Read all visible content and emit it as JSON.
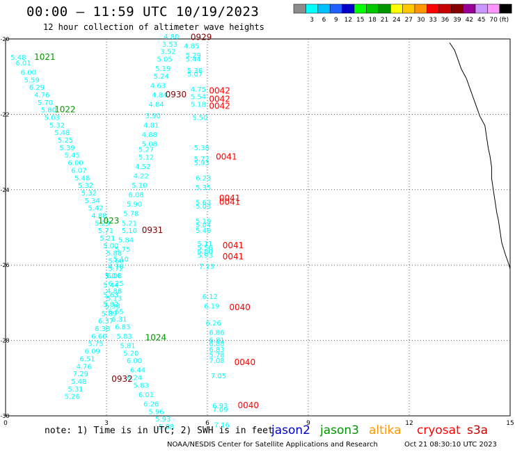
{
  "title": "00:00 – 11:59 UTC 10/19/2023",
  "subtitle": "12 hour collection of altimeter wave heights",
  "colorbar": {
    "unit": "(ft)",
    "bins": [
      {
        "label": "",
        "color": "#8c8c8c"
      },
      {
        "label": "3",
        "color": "#00ffff"
      },
      {
        "label": "6",
        "color": "#00bfff"
      },
      {
        "label": "9",
        "color": "#2060ff"
      },
      {
        "label": "12",
        "color": "#0000c8"
      },
      {
        "label": "15",
        "color": "#00ff00"
      },
      {
        "label": "18",
        "color": "#00c800"
      },
      {
        "label": "21",
        "color": "#009600"
      },
      {
        "label": "24",
        "color": "#ffff00"
      },
      {
        "label": "27",
        "color": "#ffc800"
      },
      {
        "label": "30",
        "color": "#ff9600"
      },
      {
        "label": "33",
        "color": "#ff0000"
      },
      {
        "label": "36",
        "color": "#c80000"
      },
      {
        "label": "39",
        "color": "#820000"
      },
      {
        "label": "42",
        "color": "#960096"
      },
      {
        "label": "45",
        "color": "#c896ff"
      },
      {
        "label": "70",
        "color": "#ff96ff"
      },
      {
        "label": "",
        "color": "#000000"
      }
    ]
  },
  "axes": {
    "x_ticks": [
      "0",
      "3",
      "6",
      "9",
      "12",
      "15"
    ],
    "y_ticks": [
      "-20",
      "-22",
      "-24",
      "-26",
      "-28",
      "-30"
    ],
    "xlim": [
      0,
      15
    ],
    "ylim": [
      -30,
      -20
    ]
  },
  "colors": {
    "jason2": "#0000c8",
    "jason3": "#009600",
    "altika": "#ff9600",
    "cryosat": "#ff0000",
    "s3a": "#c80000",
    "measurement": "#00ffff",
    "pass_dark": "#820000"
  },
  "coastline": [
    [
      13.2,
      -20.1
    ],
    [
      13.35,
      -20.3
    ],
    [
      13.45,
      -20.55
    ],
    [
      13.55,
      -20.8
    ],
    [
      13.7,
      -21.05
    ],
    [
      13.8,
      -21.3
    ],
    [
      13.9,
      -21.55
    ],
    [
      14.0,
      -21.8
    ],
    [
      14.1,
      -22.05
    ],
    [
      14.25,
      -22.3
    ],
    [
      14.3,
      -22.6
    ],
    [
      14.35,
      -22.9
    ],
    [
      14.4,
      -23.1
    ],
    [
      14.45,
      -23.4
    ],
    [
      14.45,
      -23.7
    ],
    [
      14.5,
      -24.0
    ],
    [
      14.55,
      -24.3
    ],
    [
      14.6,
      -24.6
    ],
    [
      14.65,
      -24.8
    ],
    [
      14.7,
      -25.1
    ],
    [
      14.75,
      -25.4
    ],
    [
      14.85,
      -25.7
    ],
    [
      14.95,
      -25.95
    ],
    [
      15.0,
      -26.1
    ]
  ],
  "passes": [
    {
      "label": "0929",
      "x": 5.5,
      "y": -20.03,
      "color": "#820000"
    },
    {
      "label": "1021",
      "x": 0.85,
      "y": -20.55,
      "color": "#009600"
    },
    {
      "label": "0930",
      "x": 4.75,
      "y": -21.55,
      "color": "#820000"
    },
    {
      "label": "0042",
      "x": 6.05,
      "y": -21.45,
      "color": "#ff0000"
    },
    {
      "label": "0042",
      "x": 6.05,
      "y": -21.67,
      "color": "#ff0000"
    },
    {
      "label": "0042",
      "x": 6.05,
      "y": -21.85,
      "color": "#ff0000"
    },
    {
      "label": "1022",
      "x": 1.45,
      "y": -21.95,
      "color": "#009600"
    },
    {
      "label": "0041",
      "x": 6.25,
      "y": -23.2,
      "color": "#ff0000"
    },
    {
      "label": "0041",
      "x": 6.35,
      "y": -24.3,
      "color": "#ff0000"
    },
    {
      "label": "0041",
      "x": 6.35,
      "y": -24.4,
      "color": "#ff0000"
    },
    {
      "label": "1023",
      "x": 2.75,
      "y": -24.9,
      "color": "#009600"
    },
    {
      "label": "0931",
      "x": 4.05,
      "y": -25.15,
      "color": "#820000"
    },
    {
      "label": "0041",
      "x": 6.45,
      "y": -25.55,
      "color": "#ff0000"
    },
    {
      "label": "0041",
      "x": 6.45,
      "y": -25.85,
      "color": "#ff0000"
    },
    {
      "label": "0040",
      "x": 6.65,
      "y": -27.2,
      "color": "#ff0000"
    },
    {
      "label": "1024",
      "x": 4.15,
      "y": -28.0,
      "color": "#009600"
    },
    {
      "label": "0040",
      "x": 6.8,
      "y": -28.65,
      "color": "#ff0000"
    },
    {
      "label": "0932",
      "x": 3.15,
      "y": -29.1,
      "color": "#820000"
    },
    {
      "label": "0040",
      "x": 6.9,
      "y": -29.8,
      "color": "#ff0000"
    }
  ],
  "measurements": [
    {
      "v": "4.80",
      "x": 4.7,
      "y": -20.0
    },
    {
      "v": "3.53",
      "x": 4.65,
      "y": -20.2
    },
    {
      "v": "4.85",
      "x": 5.3,
      "y": -20.25
    },
    {
      "v": "3.52",
      "x": 4.6,
      "y": -20.4
    },
    {
      "v": "5.29",
      "x": 5.35,
      "y": -20.5
    },
    {
      "v": "5.44",
      "x": 5.35,
      "y": -20.6
    },
    {
      "v": "5.05",
      "x": 4.5,
      "y": -20.6
    },
    {
      "v": "5.19",
      "x": 4.45,
      "y": -20.85
    },
    {
      "v": "5.38",
      "x": 5.4,
      "y": -20.9
    },
    {
      "v": "5.07",
      "x": 5.4,
      "y": -21.0
    },
    {
      "v": "5.24",
      "x": 4.4,
      "y": -21.05
    },
    {
      "v": "4.63",
      "x": 4.3,
      "y": -21.3
    },
    {
      "v": "4.75",
      "x": 5.5,
      "y": -21.4
    },
    {
      "v": "4.84",
      "x": 4.35,
      "y": -21.55
    },
    {
      "v": "5.54",
      "x": 5.5,
      "y": -21.6
    },
    {
      "v": "5.18",
      "x": 5.5,
      "y": -21.8
    },
    {
      "v": "4.84",
      "x": 4.25,
      "y": -21.8
    },
    {
      "v": "3.90",
      "x": 4.15,
      "y": -22.1
    },
    {
      "v": "5.50",
      "x": 5.55,
      "y": -22.15
    },
    {
      "v": "4.81",
      "x": 4.1,
      "y": -22.35
    },
    {
      "v": "4.88",
      "x": 4.05,
      "y": -22.6
    },
    {
      "v": "5.08",
      "x": 4.05,
      "y": -22.85
    },
    {
      "v": "5.38",
      "x": 5.6,
      "y": -22.95
    },
    {
      "v": "5.27",
      "x": 3.95,
      "y": -23.0
    },
    {
      "v": "5.12",
      "x": 3.95,
      "y": -23.2
    },
    {
      "v": "5.72",
      "x": 5.6,
      "y": -23.25
    },
    {
      "v": "5.93",
      "x": 5.6,
      "y": -23.35
    },
    {
      "v": "4.52",
      "x": 3.85,
      "y": -23.45
    },
    {
      "v": "4.22",
      "x": 3.8,
      "y": -23.7
    },
    {
      "v": "6.23",
      "x": 5.65,
      "y": -23.75
    },
    {
      "v": "5.10",
      "x": 3.75,
      "y": -23.95
    },
    {
      "v": "5.35",
      "x": 5.65,
      "y": -24.0
    },
    {
      "v": "6.08",
      "x": 3.65,
      "y": -24.2
    },
    {
      "v": "5.63",
      "x": 5.65,
      "y": -24.4
    },
    {
      "v": "5.03",
      "x": 5.65,
      "y": -24.5
    },
    {
      "v": "5.90",
      "x": 3.6,
      "y": -24.45
    },
    {
      "v": "5.78",
      "x": 3.5,
      "y": -24.7
    },
    {
      "v": "5.19",
      "x": 5.65,
      "y": -24.9
    },
    {
      "v": "5.21",
      "x": 3.45,
      "y": -24.95
    },
    {
      "v": "5.04",
      "x": 5.65,
      "y": -25.0
    },
    {
      "v": "5.49",
      "x": 5.65,
      "y": -25.15
    },
    {
      "v": "5.10",
      "x": 3.45,
      "y": -25.15
    },
    {
      "v": "5.84",
      "x": 3.35,
      "y": -25.4
    },
    {
      "v": "5.11",
      "x": 5.7,
      "y": -25.5
    },
    {
      "v": "5.56",
      "x": 5.7,
      "y": -25.6
    },
    {
      "v": "5.75",
      "x": 3.25,
      "y": -25.65
    },
    {
      "v": "6.80",
      "x": 5.7,
      "y": -25.7
    },
    {
      "v": "5.93",
      "x": 5.7,
      "y": -25.8
    },
    {
      "v": "5.10",
      "x": 3.2,
      "y": -25.9
    },
    {
      "v": "7.13",
      "x": 5.75,
      "y": -26.1
    },
    {
      "v": "4.78",
      "x": 3.05,
      "y": -26.1
    },
    {
      "v": "5.04",
      "x": 2.95,
      "y": -26.35
    },
    {
      "v": "5.44",
      "x": 2.9,
      "y": -26.6
    },
    {
      "v": "6.12",
      "x": 5.85,
      "y": -26.9
    },
    {
      "v": "5.63",
      "x": 2.9,
      "y": -26.85
    },
    {
      "v": "5.82",
      "x": 2.9,
      "y": -27.1
    },
    {
      "v": "6.19",
      "x": 5.9,
      "y": -27.15
    },
    {
      "v": "6.65",
      "x": 3.05,
      "y": -27.3
    },
    {
      "v": "6.31",
      "x": 3.15,
      "y": -27.5
    },
    {
      "v": "6.26",
      "x": 5.95,
      "y": -27.6
    },
    {
      "v": "6.83",
      "x": 3.25,
      "y": -27.7
    },
    {
      "v": "5.83",
      "x": 3.3,
      "y": -27.95
    },
    {
      "v": "6.86",
      "x": 6.05,
      "y": -27.85
    },
    {
      "v": "5.81",
      "x": 3.4,
      "y": -28.2
    },
    {
      "v": "6.81",
      "x": 6.05,
      "y": -28.05
    },
    {
      "v": "6.88",
      "x": 6.05,
      "y": -28.15
    },
    {
      "v": "6.83",
      "x": 6.05,
      "y": -28.3
    },
    {
      "v": "5.20",
      "x": 3.5,
      "y": -28.4
    },
    {
      "v": "5.78",
      "x": 6.05,
      "y": -28.45
    },
    {
      "v": "6.00",
      "x": 3.6,
      "y": -28.6
    },
    {
      "v": "7.08",
      "x": 6.05,
      "y": -28.6
    },
    {
      "v": "6.44",
      "x": 3.7,
      "y": -28.85
    },
    {
      "v": "6.24",
      "x": 3.6,
      "y": -29.05
    },
    {
      "v": "7.05",
      "x": 6.1,
      "y": -29.0
    },
    {
      "v": "5.83",
      "x": 3.8,
      "y": -29.25
    },
    {
      "v": "6.01",
      "x": 3.95,
      "y": -29.5
    },
    {
      "v": "6.26",
      "x": 4.1,
      "y": -29.75
    },
    {
      "v": "6.93",
      "x": 6.15,
      "y": -29.8
    },
    {
      "v": "7.09",
      "x": 6.15,
      "y": -29.9
    },
    {
      "v": "5.96",
      "x": 4.25,
      "y": -29.95
    },
    {
      "v": "5.93",
      "x": 4.45,
      "y": -30.15
    },
    {
      "v": "7.16",
      "x": 6.2,
      "y": -30.3
    },
    {
      "v": "5.88",
      "x": 4.55,
      "y": -30.35
    },
    {
      "v": "5.48",
      "x": 0.15,
      "y": -20.55
    },
    {
      "v": "6.01",
      "x": 0.3,
      "y": -20.7
    },
    {
      "v": "6.00",
      "x": 0.45,
      "y": -20.95
    },
    {
      "v": "5.59",
      "x": 0.55,
      "y": -21.15
    },
    {
      "v": "6.29",
      "x": 0.7,
      "y": -21.35
    },
    {
      "v": "4.76",
      "x": 0.85,
      "y": -21.55
    },
    {
      "v": "5.70",
      "x": 0.95,
      "y": -21.75
    },
    {
      "v": "5.80",
      "x": 1.05,
      "y": -21.95
    },
    {
      "v": "5.03",
      "x": 1.15,
      "y": -22.15
    },
    {
      "v": "5.32",
      "x": 1.3,
      "y": -22.35
    },
    {
      "v": "5.48",
      "x": 1.45,
      "y": -22.55
    },
    {
      "v": "5.25",
      "x": 1.55,
      "y": -22.75
    },
    {
      "v": "5.39",
      "x": 1.6,
      "y": -22.95
    },
    {
      "v": "5.45",
      "x": 1.75,
      "y": -23.15
    },
    {
      "v": "6.00",
      "x": 1.85,
      "y": -23.35
    },
    {
      "v": "6.07",
      "x": 1.95,
      "y": -23.55
    },
    {
      "v": "5.48",
      "x": 2.05,
      "y": -23.75
    },
    {
      "v": "5.32",
      "x": 2.15,
      "y": -23.95
    },
    {
      "v": "5.32",
      "x": 2.25,
      "y": -24.15
    },
    {
      "v": "5.34",
      "x": 2.35,
      "y": -24.35
    },
    {
      "v": "5.42",
      "x": 2.45,
      "y": -24.55
    },
    {
      "v": "4.88",
      "x": 2.55,
      "y": -24.75
    },
    {
      "v": "5.29",
      "x": 2.65,
      "y": -24.95
    },
    {
      "v": "5.71",
      "x": 2.75,
      "y": -25.15
    },
    {
      "v": "5.21",
      "x": 2.8,
      "y": -25.35
    },
    {
      "v": "5.00",
      "x": 2.9,
      "y": -25.55
    },
    {
      "v": "5.88",
      "x": 3.0,
      "y": -25.75
    },
    {
      "v": "5.60",
      "x": 3.05,
      "y": -25.95
    },
    {
      "v": "5.72",
      "x": 3.05,
      "y": -26.15
    },
    {
      "v": "6.08",
      "x": 3.0,
      "y": -26.35
    },
    {
      "v": "6.25",
      "x": 3.05,
      "y": -26.55
    },
    {
      "v": "4.88",
      "x": 3.0,
      "y": -26.75
    },
    {
      "v": "5.13",
      "x": 3.0,
      "y": -26.95
    },
    {
      "v": "5.38",
      "x": 2.95,
      "y": -27.15
    },
    {
      "v": "5.89",
      "x": 2.85,
      "y": -27.35
    },
    {
      "v": "6.37",
      "x": 2.75,
      "y": -27.55
    },
    {
      "v": "6.38",
      "x": 2.65,
      "y": -27.75
    },
    {
      "v": "6.60",
      "x": 2.55,
      "y": -27.95
    },
    {
      "v": "5.75",
      "x": 2.45,
      "y": -28.15
    },
    {
      "v": "6.09",
      "x": 2.35,
      "y": -28.35
    },
    {
      "v": "6.51",
      "x": 2.2,
      "y": -28.55
    },
    {
      "v": "4.76",
      "x": 2.1,
      "y": -28.75
    },
    {
      "v": "7.29",
      "x": 2.0,
      "y": -28.95
    },
    {
      "v": "5.48",
      "x": 1.95,
      "y": -29.15
    },
    {
      "v": "5.31",
      "x": 1.85,
      "y": -29.35
    },
    {
      "v": "5.26",
      "x": 1.75,
      "y": -29.55
    }
  ],
  "note": "note:  1) Time is in UTC; 2) SWH is in feet",
  "satellites": [
    {
      "label": "jason2",
      "color": "#0000c8"
    },
    {
      "label": "jason3",
      "color": "#009600"
    },
    {
      "label": "altika",
      "color": "#ff9600"
    },
    {
      "label": "cryosat",
      "color": "#ff0000"
    },
    {
      "label": "s3a",
      "color": "#c80000"
    }
  ],
  "footer_left": "NOAA/NESDIS Center for Satellite Applications and Research",
  "footer_right": "Oct 21 08:30:10 UTC 2023"
}
